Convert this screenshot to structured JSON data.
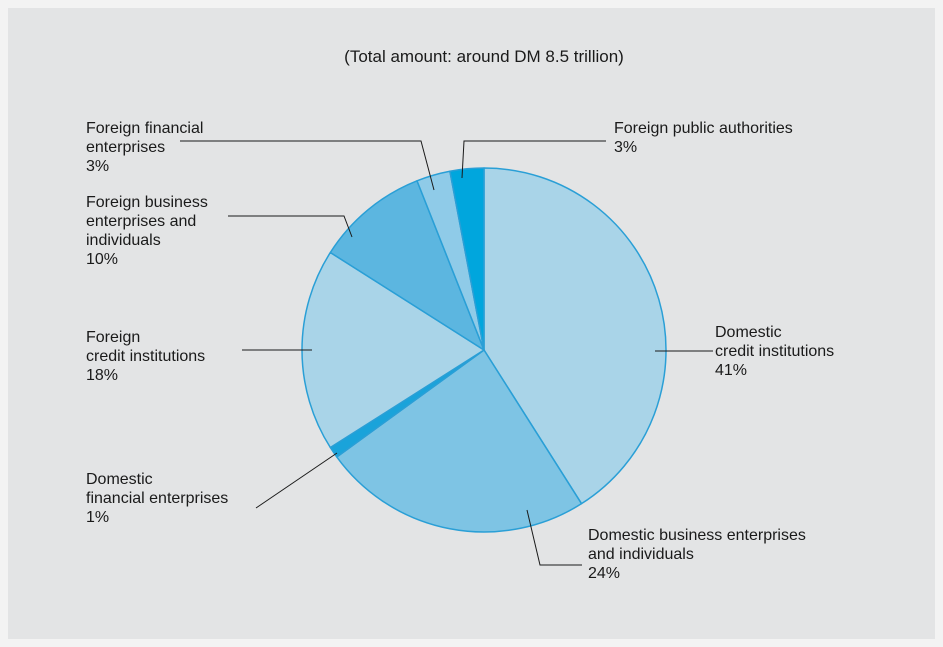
{
  "chart_data": {
    "type": "pie",
    "title": "(Total amount: around DM 8.5 trillion)",
    "slices": [
      {
        "label_lines": [
          "Domestic",
          "credit institutions"
        ],
        "value": 41,
        "value_label": "41%",
        "color": "#a9d4e8"
      },
      {
        "label_lines": [
          "Domestic business enterprises",
          "and individuals"
        ],
        "value": 24,
        "value_label": "24%",
        "color": "#7ec4e4"
      },
      {
        "label_lines": [
          "Domestic",
          "financial enterprises"
        ],
        "value": 1,
        "value_label": "1%",
        "color": "#1aa3da"
      },
      {
        "label_lines": [
          "Foreign",
          "credit institutions"
        ],
        "value": 18,
        "value_label": "18%",
        "color": "#a9d4e8"
      },
      {
        "label_lines": [
          "Foreign business",
          "enterprises and",
          "individuals"
        ],
        "value": 10,
        "value_label": "10%",
        "color": "#5cb6e0"
      },
      {
        "label_lines": [
          "Foreign financial",
          "enterprises"
        ],
        "value": 3,
        "value_label": "3%",
        "color": "#8fcbe8"
      },
      {
        "label_lines": [
          "Foreign public authorities"
        ],
        "value": 3,
        "value_label": "3%",
        "color": "#00a6dd"
      }
    ],
    "legend": "none"
  }
}
